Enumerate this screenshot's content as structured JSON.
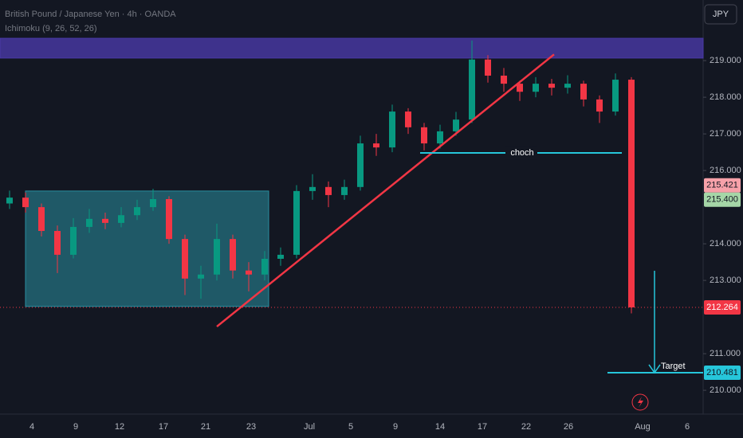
{
  "header": {
    "title": "British Pound / Japanese Yen · 4h · OANDA",
    "indicator": "Ichimoku (9, 26, 52, 26)",
    "currency": "JPY"
  },
  "chart_data": {
    "type": "candlestick",
    "ylim": [
      209.35,
      220.655
    ],
    "yticks": [
      {
        "value": 219,
        "label": "219.000"
      },
      {
        "value": 218,
        "label": "218.000"
      },
      {
        "value": 217,
        "label": "217.000"
      },
      {
        "value": 216,
        "label": "216.000"
      },
      {
        "value": 214,
        "label": "214.000"
      },
      {
        "value": 213,
        "label": "213.000"
      },
      {
        "value": 211,
        "label": "211.000"
      },
      {
        "value": 210,
        "label": "210.000"
      }
    ],
    "xlabels": [
      "4",
      "9",
      "12",
      "17",
      "21",
      "23",
      "Jul",
      "5",
      "9",
      "14",
      "17",
      "22",
      "26",
      "Aug",
      "6"
    ],
    "up_color": "#089981",
    "down_color": "#f23645",
    "ohlc": [
      [
        215.1,
        215.45,
        214.95,
        215.26
      ],
      [
        215.26,
        215.4,
        214.85,
        215.0
      ],
      [
        215.0,
        215.1,
        214.2,
        214.35
      ],
      [
        214.35,
        214.5,
        213.2,
        213.7
      ],
      [
        213.7,
        214.7,
        213.6,
        214.46
      ],
      [
        214.46,
        214.95,
        214.3,
        214.68
      ],
      [
        214.68,
        214.85,
        214.4,
        214.57
      ],
      [
        214.57,
        215.0,
        214.45,
        214.78
      ],
      [
        214.78,
        215.2,
        214.65,
        215.0
      ],
      [
        215.0,
        215.5,
        214.9,
        215.22
      ],
      [
        215.22,
        215.3,
        214.0,
        214.13
      ],
      [
        214.13,
        214.25,
        212.6,
        213.05
      ],
      [
        213.05,
        213.4,
        212.5,
        213.16
      ],
      [
        213.16,
        214.55,
        213.0,
        214.13
      ],
      [
        214.13,
        214.25,
        213.05,
        213.27
      ],
      [
        213.27,
        213.5,
        212.7,
        213.16
      ],
      [
        213.16,
        213.8,
        213.0,
        213.59
      ],
      [
        213.59,
        213.9,
        213.4,
        213.7
      ],
      [
        213.7,
        215.6,
        213.6,
        215.44
      ],
      [
        215.44,
        215.9,
        215.2,
        215.55
      ],
      [
        215.55,
        215.7,
        215.0,
        215.33
      ],
      [
        215.33,
        215.75,
        215.2,
        215.55
      ],
      [
        215.55,
        216.95,
        215.45,
        216.74
      ],
      [
        216.74,
        217.0,
        216.4,
        216.63
      ],
      [
        216.63,
        217.8,
        216.5,
        217.61
      ],
      [
        217.61,
        217.7,
        217.0,
        217.18
      ],
      [
        217.18,
        217.3,
        216.55,
        216.74
      ],
      [
        216.74,
        217.25,
        216.6,
        217.07
      ],
      [
        217.07,
        217.6,
        216.95,
        217.39
      ],
      [
        217.39,
        219.55,
        217.3,
        219.03
      ],
      [
        219.03,
        219.15,
        218.4,
        218.59
      ],
      [
        218.59,
        218.8,
        218.15,
        218.37
      ],
      [
        218.37,
        218.45,
        217.9,
        218.15
      ],
      [
        218.15,
        218.55,
        218.0,
        218.37
      ],
      [
        218.37,
        218.5,
        218.05,
        218.26
      ],
      [
        218.26,
        218.6,
        218.1,
        218.37
      ],
      [
        218.37,
        218.45,
        217.75,
        217.94
      ],
      [
        217.94,
        218.05,
        217.3,
        217.61
      ],
      [
        217.61,
        218.65,
        217.5,
        218.48
      ],
      [
        218.48,
        218.55,
        212.1,
        212.264
      ]
    ],
    "zones": [
      {
        "low": 219.07,
        "high": 219.61,
        "color": "#4a3aa8"
      },
      {
        "low": 212.29,
        "high": 215.44,
        "color": "#2a8fa0"
      }
    ],
    "trendline": [
      211.74,
      219.17
    ],
    "choch": {
      "label": "choch",
      "price": 216.48
    },
    "target": {
      "label": "Target",
      "price": 210.481
    },
    "price_labels": [
      {
        "value": 215.421,
        "color": "#f7a1a9"
      },
      {
        "value": 215.4,
        "label": "215.400",
        "color": "#a5d6a7"
      },
      {
        "value": 212.264,
        "color": "#f23645"
      },
      {
        "value": 210.481,
        "color": "#26c6da"
      }
    ]
  }
}
